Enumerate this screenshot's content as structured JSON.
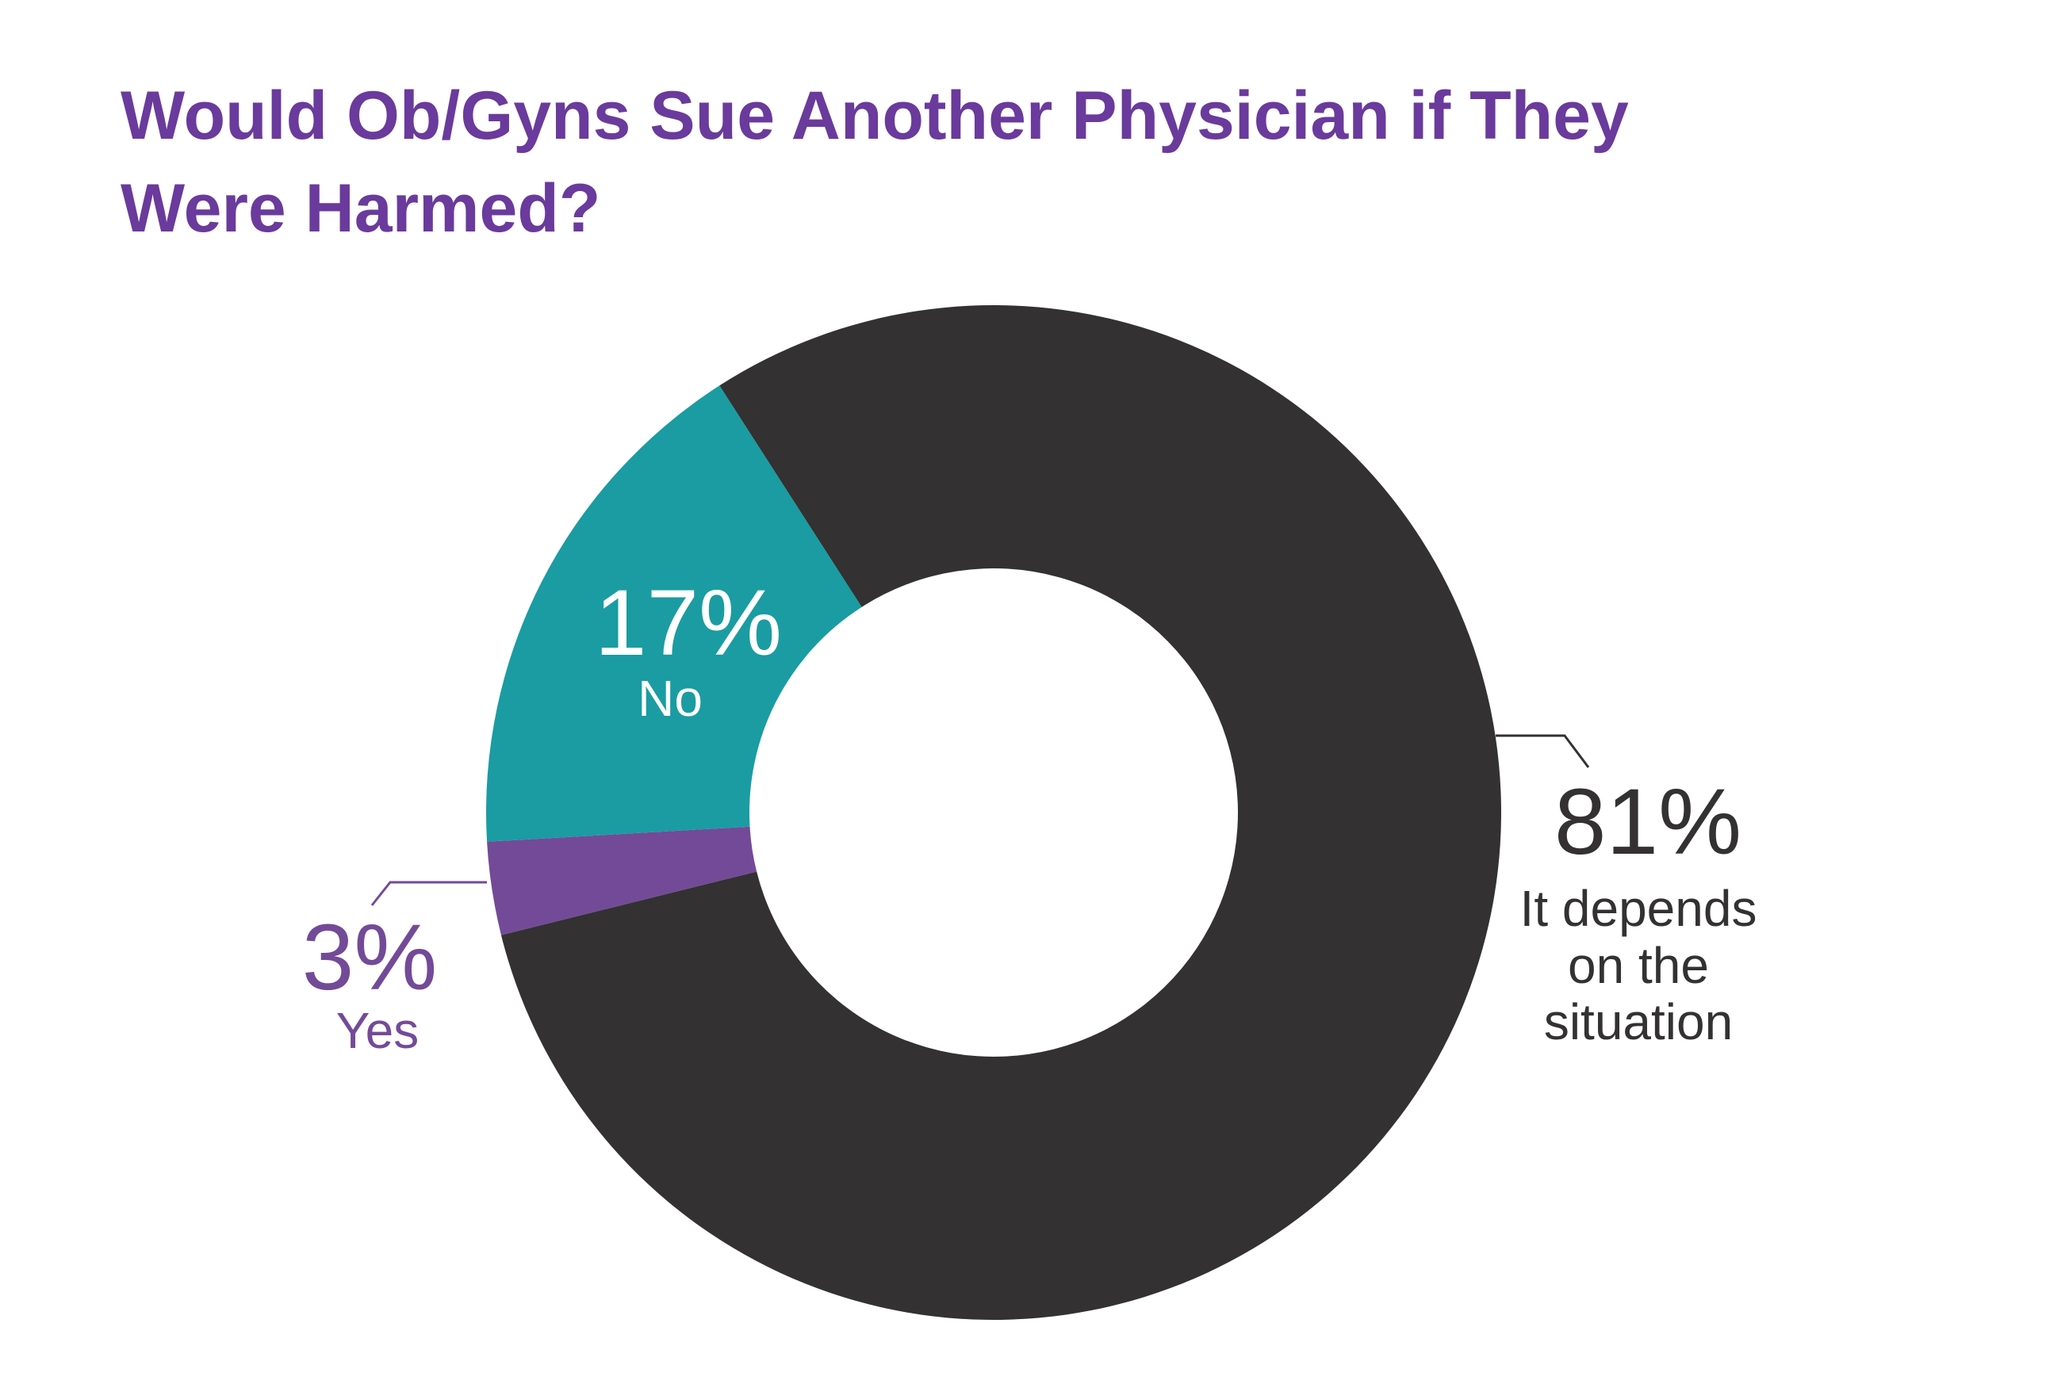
{
  "chart_data": {
    "type": "pie",
    "donut": true,
    "title_lines": [
      "Would Ob/Gyns Sue Another Physician if They",
      "Were Harmed?"
    ],
    "slices": [
      {
        "label": "It depends on the situation",
        "label_lines": [
          "It depends",
          "on the",
          "situation"
        ],
        "value": 81,
        "value_label": "81%",
        "color": "#333132"
      },
      {
        "label": "Yes",
        "label_lines": [
          "Yes"
        ],
        "value": 3,
        "value_label": "3%",
        "color": "#734a98"
      },
      {
        "label": "No",
        "label_lines": [
          "No"
        ],
        "value": 17,
        "value_label": "17%",
        "color": "#1a9ca2"
      }
    ],
    "legend": "none"
  },
  "colors": {
    "title": "#6a3a9c"
  }
}
